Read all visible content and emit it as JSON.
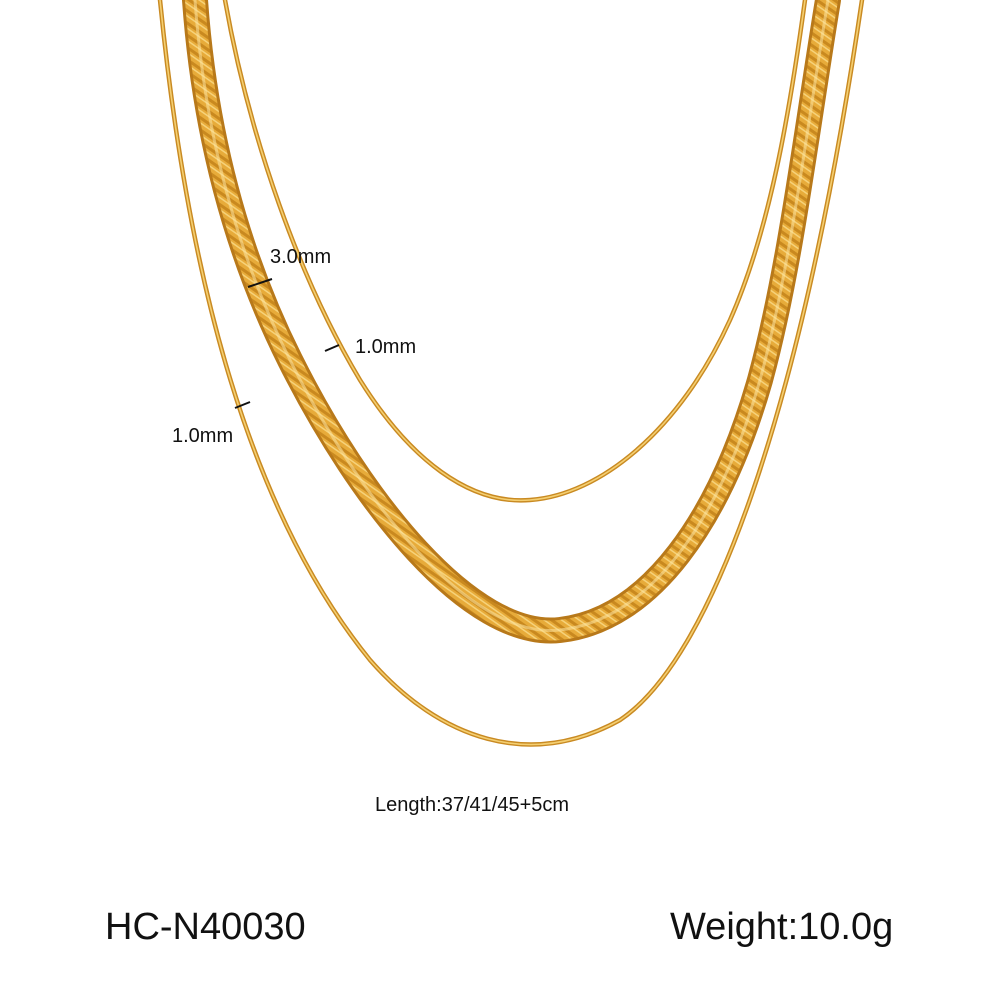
{
  "product": {
    "sku": "HC-N40030",
    "weight": "Weight:10.0g",
    "length": "Length:37/41/45+5cm"
  },
  "chains": [
    {
      "name": "inner-snake-chain",
      "width_label": "1.0mm"
    },
    {
      "name": "middle-herringbone-chain",
      "width_label": "3.0mm"
    },
    {
      "name": "outer-snake-chain",
      "width_label": "1.0mm"
    }
  ],
  "colors": {
    "gold_light": "#f3c85a",
    "gold_mid": "#e0a22e",
    "gold_dark": "#b9791b",
    "marker": "#111111",
    "background": "#ffffff"
  }
}
